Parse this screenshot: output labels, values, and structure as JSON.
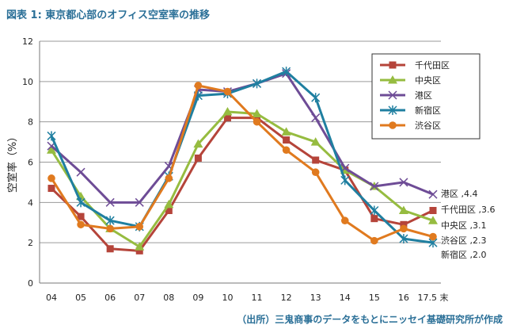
{
  "figure_title": "図表 1: 東京都心部のオフィス空室率の推移",
  "source_note": "（出所）三鬼商事のデータをもとにニッセイ基礎研究所が作成",
  "chart_data": {
    "type": "line",
    "title": "図表 1: 東京都心部のオフィス空室率の推移",
    "ylabel": "空室率（%）",
    "xlabel": "",
    "categories": [
      "04",
      "05",
      "06",
      "07",
      "08",
      "09",
      "10",
      "11",
      "12",
      "13",
      "14",
      "15",
      "16",
      "17.5 末"
    ],
    "ylim": [
      0,
      12
    ],
    "yticks": [
      0,
      2,
      4,
      6,
      8,
      10,
      12
    ],
    "grid": "horizontal",
    "legend_position": "top-right",
    "series": [
      {
        "name": "千代田区",
        "color": "#b5443a",
        "marker": "square",
        "values": [
          4.7,
          3.3,
          1.7,
          1.6,
          3.6,
          6.2,
          8.2,
          8.2,
          7.1,
          6.1,
          5.6,
          3.2,
          2.9,
          3.6
        ],
        "end_label": "千代田区 ,3.6"
      },
      {
        "name": "中央区",
        "color": "#96bc40",
        "marker": "triangle",
        "values": [
          6.6,
          4.3,
          2.7,
          1.8,
          3.9,
          6.9,
          8.5,
          8.4,
          7.5,
          7.0,
          5.6,
          4.8,
          3.6,
          3.1
        ],
        "end_label": "中央区 ,3.1"
      },
      {
        "name": "港区",
        "color": "#6e4c96",
        "marker": "x",
        "values": [
          6.8,
          5.5,
          4.0,
          4.0,
          5.8,
          9.6,
          9.5,
          9.9,
          10.4,
          8.2,
          5.7,
          4.8,
          5.0,
          4.4
        ],
        "end_label": "港区 ,4.4"
      },
      {
        "name": "新宿区",
        "color": "#1f7fa0",
        "marker": "star",
        "values": [
          7.3,
          4.0,
          3.1,
          2.8,
          5.3,
          9.3,
          9.4,
          9.9,
          10.5,
          9.2,
          5.1,
          3.6,
          2.2,
          2.0
        ],
        "end_label": "新宿区 ,2.0"
      },
      {
        "name": "渋谷区",
        "color": "#e07a1f",
        "marker": "circle",
        "values": [
          5.2,
          2.9,
          2.7,
          2.8,
          5.2,
          9.8,
          9.5,
          8.0,
          6.6,
          5.5,
          3.1,
          2.1,
          2.7,
          2.3
        ],
        "end_label": "渋谷区 ,2.3"
      }
    ]
  }
}
